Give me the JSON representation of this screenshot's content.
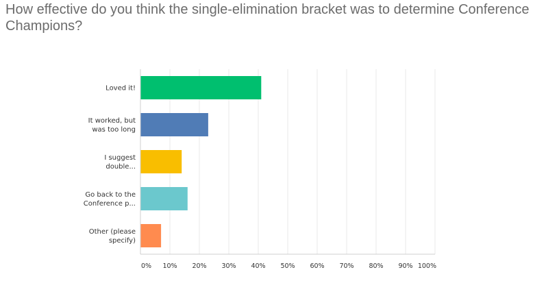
{
  "question": {
    "title": "How effective do you think the single-elimination bracket was to determine Conference Champions?"
  },
  "chart_data": {
    "type": "bar",
    "orientation": "horizontal",
    "title": "",
    "xlabel": "",
    "ylabel": "",
    "xlim": [
      0,
      100
    ],
    "grid": true,
    "categories": [
      [
        "Loved it!"
      ],
      [
        "It worked, but",
        "was too long"
      ],
      [
        "I suggest",
        "double..."
      ],
      [
        "Go back to the",
        "Conference p..."
      ],
      [
        "Other (please",
        "specify)"
      ]
    ],
    "values": [
      41,
      23,
      14,
      16,
      7
    ],
    "colors": [
      "#00bf6f",
      "#507cb6",
      "#f9be00",
      "#6bc8cd",
      "#ff8b4f"
    ],
    "ticks": [
      "0%",
      "10%",
      "20%",
      "30%",
      "40%",
      "50%",
      "60%",
      "70%",
      "80%",
      "90%",
      "100%"
    ]
  }
}
